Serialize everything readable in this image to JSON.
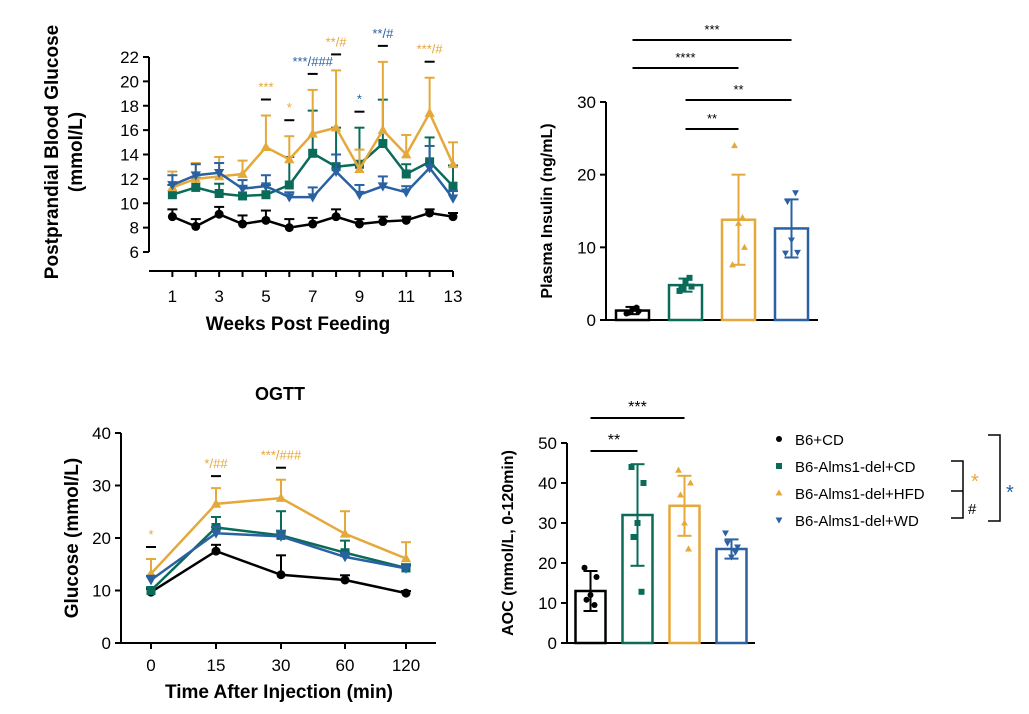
{
  "colors": {
    "cd": "#000000",
    "alms_cd": "#0a6b59",
    "alms_hfd": "#e5a83a",
    "alms_wd": "#2a61a2"
  },
  "legend": {
    "items": [
      {
        "label": "B6+CD",
        "color": "#000000",
        "marker": "circle"
      },
      {
        "label": "B6-Alms1-del+CD",
        "color": "#0a6b59",
        "marker": "square"
      },
      {
        "label": "B6-Alms1-del+HFD",
        "color": "#e5a83a",
        "marker": "triangle-up"
      },
      {
        "label": "B6-Alms1-del+WD",
        "color": "#2a61a2",
        "marker": "triangle-down"
      }
    ],
    "bracket_inner_star": "*",
    "bracket_inner_hash": "#",
    "bracket_outer_star": "*"
  },
  "chart_data": [
    {
      "id": "glucose",
      "type": "line",
      "title": "",
      "xlabel": "Weeks Post Feeding",
      "ylabel": "Postprandial Blood Glucose",
      "ylabel_unit": "(mmol/L)",
      "xlim": [
        0,
        13
      ],
      "ylim": [
        6,
        22
      ],
      "xticks": [
        1,
        3,
        5,
        7,
        9,
        11,
        13
      ],
      "yticks": [
        6,
        8,
        10,
        12,
        14,
        16,
        18,
        20,
        22
      ],
      "x": [
        1,
        2,
        3,
        4,
        5,
        6,
        7,
        8,
        9,
        10,
        11,
        12,
        13
      ],
      "series": [
        {
          "name": "B6+CD",
          "marker": "circle",
          "values": [
            8.9,
            8.1,
            9.1,
            8.3,
            8.6,
            8.0,
            8.3,
            8.9,
            8.3,
            8.5,
            8.6,
            9.2,
            8.9
          ],
          "err": [
            0.6,
            0.6,
            0.6,
            0.7,
            0.8,
            0.7,
            0.5,
            0.6,
            0.4,
            0.4,
            0.3,
            0.3,
            0.3
          ]
        },
        {
          "name": "B6-Alms1-del+CD",
          "marker": "square",
          "values": [
            10.7,
            11.3,
            10.8,
            10.6,
            10.7,
            11.5,
            14.1,
            13.0,
            13.2,
            14.9,
            12.4,
            13.4,
            11.4
          ],
          "err": [
            0.8,
            0.8,
            0.8,
            0.8,
            0.8,
            2.3,
            3.5,
            3.2,
            3.0,
            3.6,
            0.8,
            2.0,
            1.7
          ]
        },
        {
          "name": "B6-Alms1-del+HFD",
          "marker": "triangle-up",
          "values": [
            11.3,
            12.0,
            12.2,
            12.4,
            14.6,
            13.6,
            15.7,
            16.2,
            12.8,
            16.0,
            14.0,
            17.4,
            13.2
          ],
          "err": [
            1.3,
            1.3,
            1.6,
            1.1,
            2.6,
            1.9,
            3.6,
            4.7,
            1.6,
            5.6,
            1.6,
            2.9,
            1.8
          ]
        },
        {
          "name": "B6-Alms1-del+WD",
          "marker": "triangle-down",
          "values": [
            11.5,
            12.3,
            12.5,
            11.2,
            11.4,
            10.5,
            10.5,
            12.6,
            10.7,
            11.4,
            10.9,
            12.9,
            10.4
          ],
          "err": [
            0.8,
            0.9,
            0.8,
            0.7,
            0.9,
            0.4,
            0.8,
            1.4,
            0.8,
            0.8,
            0.5,
            1.8,
            0.6
          ]
        }
      ],
      "annotations": [
        {
          "x": 5,
          "text": "***",
          "color": "#e5a83a"
        },
        {
          "x": 6,
          "text": "*",
          "color": "#e5a83a"
        },
        {
          "x": 7,
          "text": "***/###",
          "color": "#2a61a2"
        },
        {
          "x": 8,
          "text": "**/#",
          "color": "#e5a83a"
        },
        {
          "x": 9,
          "text": "*",
          "color": "#2a61a2"
        },
        {
          "x": 10,
          "text": "**/#",
          "color": "#2a61a2"
        },
        {
          "x": 12,
          "text": "***/#",
          "color": "#e5a83a"
        }
      ]
    },
    {
      "id": "insulin",
      "type": "bar",
      "title": "",
      "xlabel": "",
      "ylabel": "Plasma Insulin (ng/mL)",
      "ylim": [
        0,
        30
      ],
      "yticks": [
        0,
        10,
        20,
        30
      ],
      "categories": [
        "B6+CD",
        "B6-Alms1-del+CD",
        "B6-Alms1-del+HFD",
        "B6-Alms1-del+WD"
      ],
      "values": [
        1.3,
        4.8,
        13.8,
        12.6
      ],
      "err": [
        0.5,
        0.9,
        6.2,
        4.0
      ],
      "points": [
        [
          0.9,
          1.2,
          1.5,
          1.7,
          1.0
        ],
        [
          4.0,
          4.6,
          5.3,
          5.8,
          4.3
        ],
        [
          7.6,
          10.0,
          13.3,
          14.1,
          24.0
        ],
        [
          9.2,
          9.3,
          11.0,
          17.5,
          16.3
        ]
      ],
      "significance": [
        {
          "from": 0,
          "to": 3,
          "text": "***"
        },
        {
          "from": 0,
          "to": 2,
          "text": "****"
        },
        {
          "from": 1,
          "to": 3,
          "text": "**"
        },
        {
          "from": 1,
          "to": 2,
          "text": "**"
        }
      ]
    },
    {
      "id": "ogtt",
      "type": "line",
      "title": "OGTT",
      "xlabel": "Time After Injection (min)",
      "ylabel": "Glucose (mmol/L)",
      "ylim": [
        0,
        40
      ],
      "yticks": [
        0,
        10,
        20,
        30,
        40
      ],
      "categories": [
        "0",
        "15",
        "30",
        "60",
        "120"
      ],
      "series": [
        {
          "name": "B6+CD",
          "marker": "circle",
          "values": [
            9.7,
            17.5,
            13.0,
            12.0,
            9.5
          ],
          "err": [
            0.6,
            1.2,
            3.7,
            0.9,
            0.4
          ]
        },
        {
          "name": "B6-Alms1-del+CD",
          "marker": "square",
          "values": [
            10.0,
            22.0,
            20.5,
            17.2,
            14.3
          ],
          "err": [
            0.6,
            2.0,
            4.6,
            2.3,
            0.7
          ]
        },
        {
          "name": "B6-Alms1-del+HFD",
          "marker": "triangle-up",
          "values": [
            13.2,
            26.5,
            27.6,
            20.8,
            16.1
          ],
          "err": [
            2.8,
            3.0,
            3.5,
            4.3,
            3.1
          ]
        },
        {
          "name": "B6-Alms1-del+WD",
          "marker": "triangle-down",
          "values": [
            12.0,
            20.9,
            20.3,
            16.4,
            14.2
          ],
          "err": [
            0.8,
            1.2,
            1.1,
            0.8,
            0.5
          ]
        }
      ],
      "annotations": [
        {
          "x": 0,
          "text": "*",
          "color": "#e5a83a"
        },
        {
          "x": 1,
          "text": "*/##",
          "color": "#e5a83a"
        },
        {
          "x": 2,
          "text": "***/###",
          "color": "#e5a83a"
        }
      ]
    },
    {
      "id": "aoc",
      "type": "bar",
      "title": "",
      "xlabel": "",
      "ylabel": "AOC (mmol/L, 0-120min)",
      "ylim": [
        0,
        50
      ],
      "yticks": [
        0,
        10,
        20,
        30,
        40,
        50
      ],
      "categories": [
        "B6+CD",
        "B6-Alms1-del+CD",
        "B6-Alms1-del+HFD",
        "B6-Alms1-del+WD"
      ],
      "values": [
        13.0,
        32.0,
        34.3,
        23.5
      ],
      "err": [
        5.0,
        12.7,
        7.5,
        2.4
      ],
      "points": [
        [
          18.8,
          16.5,
          12.0,
          9.5,
          10.8
        ],
        [
          44.0,
          40.0,
          30.0,
          12.8,
          26.5
        ],
        [
          43.2,
          40.0,
          30.0,
          23.5,
          37.0
        ],
        [
          27.5,
          24.0,
          21.5,
          22.7,
          25.0
        ]
      ],
      "significance": [
        {
          "from": 0,
          "to": 2,
          "text": "***"
        },
        {
          "from": 0,
          "to": 1,
          "text": "**"
        }
      ]
    }
  ]
}
